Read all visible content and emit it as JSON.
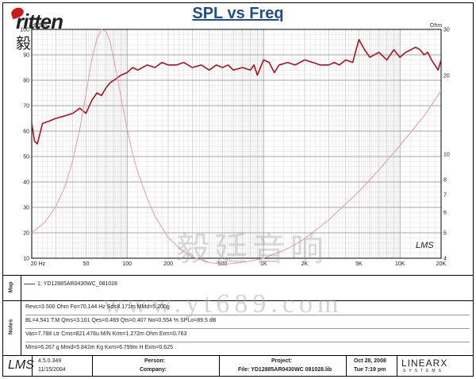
{
  "header": {
    "brand": "ritten",
    "brand_cn": "毅廷音响",
    "watermark_cn": "毅廷音响",
    "watermark_url": "www.yt689.com",
    "lms_small": "LMS"
  },
  "chart_data": {
    "type": "line",
    "title": "SPL vs Freq",
    "x_scale": "log",
    "xlim": [
      20,
      20000
    ],
    "x_ticks": [
      20,
      50,
      100,
      200,
      500,
      1000,
      2000,
      5000,
      10000,
      20000
    ],
    "x_tick_labels": [
      "20 Hz",
      "50",
      "100",
      "200",
      "500",
      "1K",
      "2K",
      "5K",
      "10K",
      "20K"
    ],
    "left_axis": {
      "label": "dBSPL",
      "ylim": [
        10,
        100
      ],
      "ticks": [
        10,
        20,
        30,
        40,
        50,
        60,
        70,
        80,
        90,
        100
      ],
      "tick_labels": [
        "10",
        "20",
        "30",
        "40",
        "50",
        "60",
        "70",
        "80",
        "90",
        "100"
      ]
    },
    "right_axis": {
      "label": "Ohm",
      "scale": "log",
      "ylim": [
        4,
        30
      ],
      "ticks": [
        4,
        5,
        6,
        7,
        8,
        10,
        20,
        30
      ],
      "tick_labels": [
        "4",
        "5",
        "6",
        "7",
        "8",
        "10",
        "20",
        "30"
      ]
    },
    "grid": true,
    "series": [
      {
        "name": "1: YD12885AR0430WC_081028",
        "axis": "left",
        "color": "#b01020",
        "x": [
          20,
          21,
          22,
          24,
          27,
          30,
          35,
          40,
          45,
          50,
          55,
          60,
          65,
          70,
          75,
          80,
          90,
          100,
          110,
          120,
          140,
          160,
          180,
          200,
          230,
          260,
          300,
          350,
          400,
          450,
          500,
          550,
          600,
          700,
          800,
          850,
          900,
          1000,
          1100,
          1200,
          1300,
          1500,
          1700,
          2000,
          2300,
          2600,
          3000,
          3300,
          3600,
          4000,
          4500,
          5000,
          5500,
          6000,
          7000,
          8000,
          9000,
          10000,
          11000,
          12000,
          13000,
          14000,
          15000,
          16000,
          17000,
          18000,
          19000,
          20000
        ],
        "y": [
          63,
          56,
          55,
          63,
          64,
          65,
          66,
          67,
          69,
          67,
          72,
          75,
          74,
          77,
          79,
          80,
          82,
          83,
          85,
          84,
          86,
          85,
          87,
          86,
          86,
          87,
          85,
          86,
          84,
          86,
          85,
          86,
          84,
          85,
          84,
          86,
          82,
          88,
          87,
          83,
          86,
          87,
          86,
          88,
          87,
          86,
          86,
          87,
          86,
          88,
          87,
          96,
          92,
          89,
          91,
          88,
          92,
          89,
          91,
          92,
          93,
          92,
          90,
          91,
          88,
          86,
          84,
          88
        ]
      },
      {
        "name": "impedance",
        "axis": "right",
        "color": "#e89aa8",
        "x": [
          20,
          25,
          30,
          35,
          40,
          45,
          50,
          55,
          60,
          65,
          70,
          75,
          80,
          85,
          90,
          100,
          110,
          120,
          140,
          160,
          200,
          250,
          300,
          400,
          500,
          600,
          800,
          1000,
          1500,
          2000,
          3000,
          5000,
          7000,
          10000,
          15000,
          20000
        ],
        "y": [
          5.0,
          5.5,
          6.3,
          7.5,
          9.5,
          12.5,
          17.0,
          23.0,
          27.5,
          30.0,
          29.5,
          27.0,
          23.0,
          19.5,
          16.5,
          12.5,
          10.0,
          8.5,
          6.8,
          5.8,
          4.8,
          4.3,
          4.05,
          3.85,
          3.8,
          3.82,
          3.9,
          4.0,
          4.35,
          4.75,
          5.6,
          7.2,
          8.7,
          10.8,
          14.0,
          17.5
        ]
      }
    ]
  },
  "panels": {
    "map_label": "Map",
    "notes_label": "Notes",
    "legend_entry": "1: YD12885AR0430WC_081028",
    "notes": [
      "Revc=3.500 Ohm  Fo=70.144 Hz  Sd=8.171m  MMd=5.200g",
      "BL=4.541 T.M  Qms=3.101  Qes=0.469  Qts=0.407  No=0.554 %  SPLo=89.5 dB",
      "Vas=7.788 Ltr  Cms=821.476u M/N  Krm=1.272m Ohm  Erm=0.763",
      "Mms=6.267 g  Mmd=5.842m Kg  Kxm=6.799m H  Exm=0.625"
    ]
  },
  "footer": {
    "lms": "LMS",
    "version": "4.5.0.349",
    "version_date": "11/15/2004",
    "person_label": "Person:",
    "company_label": "Company:",
    "project_label": "Project:",
    "file_label": "File: YD12885AR0430WC 081028.lib",
    "date": "Oct 28, 2008",
    "time": "Tue  7:19 pm",
    "brand": "LINEARX",
    "systems": "SYSTEMS"
  }
}
